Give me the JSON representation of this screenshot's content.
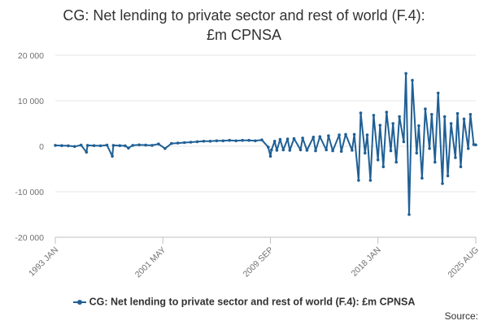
{
  "chart_data": {
    "type": "line",
    "title": "CG: Net lending to private sector and rest of world (F.4):\n£m CPNSA",
    "title_lines": [
      "CG: Net lending to private sector and rest of world (F.4):",
      "£m CPNSA"
    ],
    "ylim": [
      -20000,
      20000
    ],
    "y_ticks": [
      20000,
      10000,
      0,
      -10000,
      -20000
    ],
    "y_tick_labels": [
      "20 000",
      "10 000",
      "0",
      "-10 000",
      "-20 000"
    ],
    "x_tick_labels": [
      "1993 JAN",
      "2001 MAY",
      "2009 SEP",
      "2018 JAN",
      "2025 AUG"
    ],
    "x_range": [
      "1993-01",
      "2025-08"
    ],
    "grid": true,
    "legend_position": "bottom",
    "color": "#206095",
    "series": [
      {
        "name": "CG: Net lending to private sector and rest of world (F.4): £m CPNSA",
        "x": [
          "1993-01",
          "1993-07",
          "1994-01",
          "1994-07",
          "1995-01",
          "1995-06",
          "1995-07",
          "1996-01",
          "1996-07",
          "1997-01",
          "1997-06",
          "1997-07",
          "1998-01",
          "1998-06",
          "1998-09",
          "1999-01",
          "1999-07",
          "2000-01",
          "2000-07",
          "2001-01",
          "2001-07",
          "2002-01",
          "2002-07",
          "2003-01",
          "2003-07",
          "2004-01",
          "2004-07",
          "2005-01",
          "2005-07",
          "2006-01",
          "2006-07",
          "2007-01",
          "2007-07",
          "2008-01",
          "2008-07",
          "2009-01",
          "2009-07",
          "2009-09",
          "2009-10",
          "2010-01",
          "2010-03",
          "2010-06",
          "2010-09",
          "2011-01",
          "2011-03",
          "2011-07",
          "2012-01",
          "2012-03",
          "2012-07",
          "2013-01",
          "2013-03",
          "2013-07",
          "2014-01",
          "2014-03",
          "2014-07",
          "2015-01",
          "2015-03",
          "2015-07",
          "2016-01",
          "2016-03",
          "2016-07",
          "2016-09",
          "2017-01",
          "2017-03",
          "2017-06",
          "2017-09",
          "2018-01",
          "2018-03",
          "2018-06",
          "2018-09",
          "2019-01",
          "2019-03",
          "2019-06",
          "2019-09",
          "2020-01",
          "2020-03",
          "2020-06",
          "2020-09",
          "2021-01",
          "2021-03",
          "2021-06",
          "2021-09",
          "2022-01",
          "2022-03",
          "2022-06",
          "2022-09",
          "2023-01",
          "2023-03",
          "2023-06",
          "2023-09",
          "2024-01",
          "2024-03",
          "2024-06",
          "2024-09",
          "2025-01",
          "2025-03",
          "2025-06",
          "2025-08"
        ],
        "values": [
          200,
          150,
          100,
          -50,
          250,
          -1300,
          200,
          150,
          100,
          250,
          -2200,
          200,
          150,
          100,
          -400,
          200,
          300,
          250,
          200,
          500,
          -500,
          600,
          700,
          800,
          900,
          1000,
          1100,
          1100,
          1200,
          1200,
          1300,
          1200,
          1300,
          1300,
          1200,
          1400,
          -200,
          -2200,
          -800,
          1100,
          -900,
          1500,
          -800,
          1600,
          -900,
          1700,
          -800,
          1800,
          -900,
          2000,
          -1000,
          2100,
          -800,
          2300,
          -1000,
          2500,
          -1100,
          2600,
          -900,
          2600,
          -7500,
          7300,
          -1500,
          2500,
          -7500,
          6800,
          -3000,
          4600,
          -4500,
          7500,
          -1000,
          5000,
          -3500,
          6500,
          1000,
          16000,
          -15000,
          14500,
          -1500,
          4500,
          -7000,
          8200,
          -500,
          7000,
          -3500,
          11700,
          -8200,
          6500,
          -6500,
          5000,
          -2500,
          7200,
          -4500,
          6000,
          -500,
          7000,
          400,
          300
        ]
      }
    ],
    "legend_label": "CG: Net lending to private sector and rest of world (F.4): £m CPNSA"
  },
  "source_label": "Source:"
}
